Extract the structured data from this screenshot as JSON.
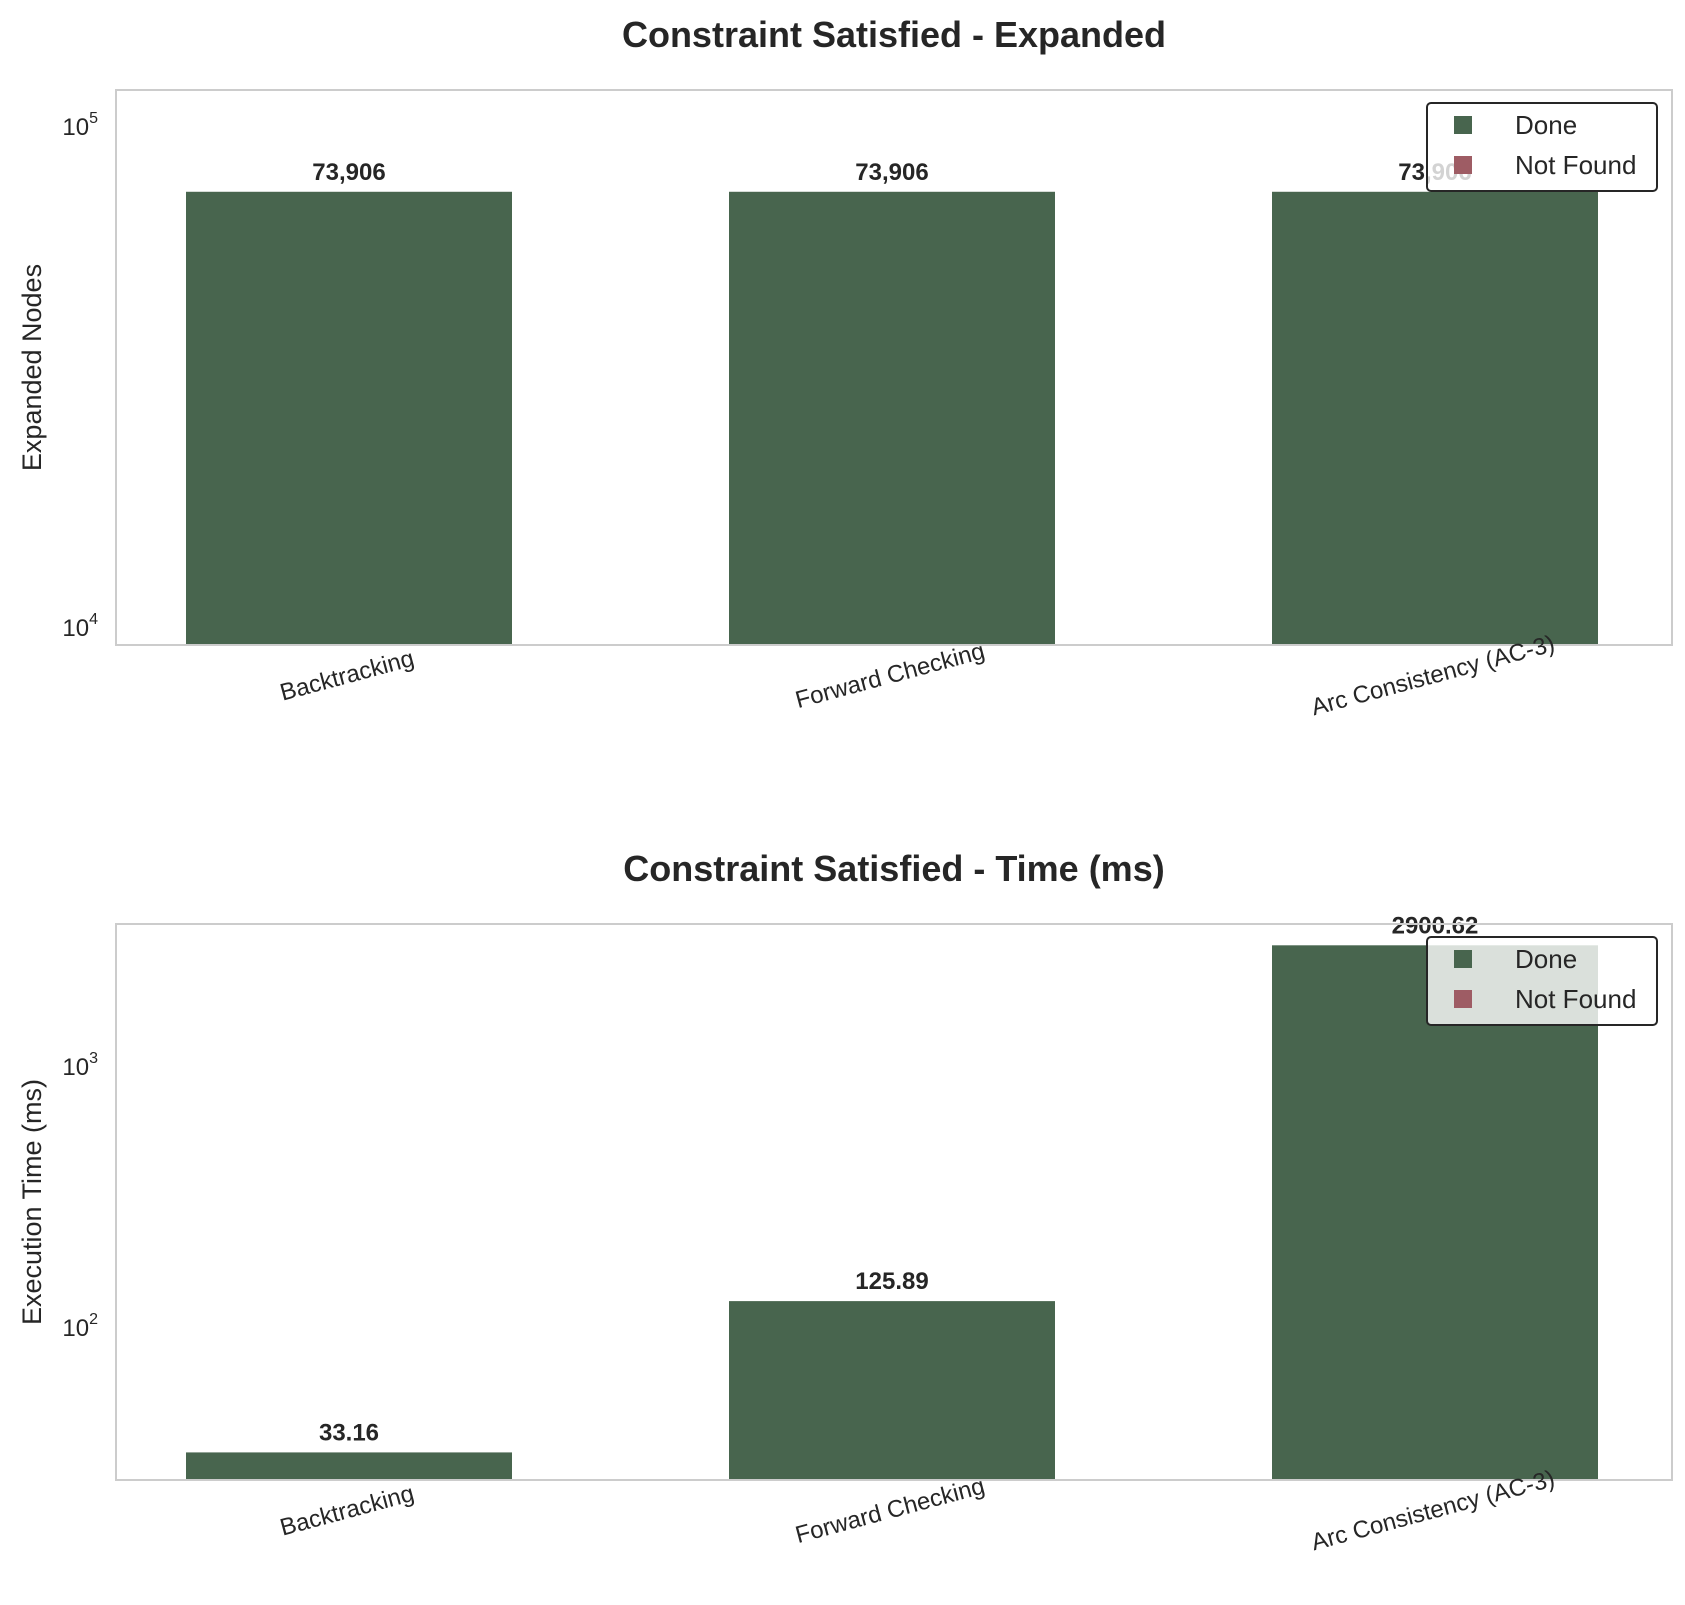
{
  "colors": {
    "done": "#48654e",
    "not_found": "#9e5c64",
    "axes_edge": "#cccccc",
    "text": "#262626",
    "legend_edge": "#262626"
  },
  "legend": {
    "placement": "top-right",
    "entries": [
      "Done",
      "Not Found"
    ]
  },
  "chart_data": [
    {
      "type": "bar",
      "title": "Constraint Satisfied - Expanded",
      "xlabel": "",
      "ylabel": "Expanded Nodes",
      "yscale": "log",
      "ylim": [
        9200,
        118000
      ],
      "yticks": [
        {
          "value": 10000,
          "base": "10",
          "exp": "4"
        },
        {
          "value": 100000,
          "base": "10",
          "exp": "5"
        }
      ],
      "grid": false,
      "categories": [
        "Backtracking",
        "Forward Checking",
        "Arc Consistency (AC-3)"
      ],
      "values": [
        73906,
        73906,
        73906
      ],
      "data_labels": [
        "73,906",
        "73,906",
        "73,906"
      ],
      "status": [
        "Done",
        "Done",
        "Done"
      ]
    },
    {
      "type": "bar",
      "title": "Constraint Satisfied - Time (ms)",
      "xlabel": "",
      "ylabel": "Execution Time (ms)",
      "yscale": "log",
      "ylim": [
        26,
        3500
      ],
      "yticks": [
        {
          "value": 100,
          "base": "10",
          "exp": "2"
        },
        {
          "value": 1000,
          "base": "10",
          "exp": "3"
        }
      ],
      "grid": false,
      "categories": [
        "Backtracking",
        "Forward Checking",
        "Arc Consistency (AC-3)"
      ],
      "values": [
        33.16,
        125.89,
        2900.62
      ],
      "data_labels": [
        "33.16",
        "125.89",
        "2900.62"
      ],
      "status": [
        "Done",
        "Done",
        "Done"
      ]
    }
  ]
}
